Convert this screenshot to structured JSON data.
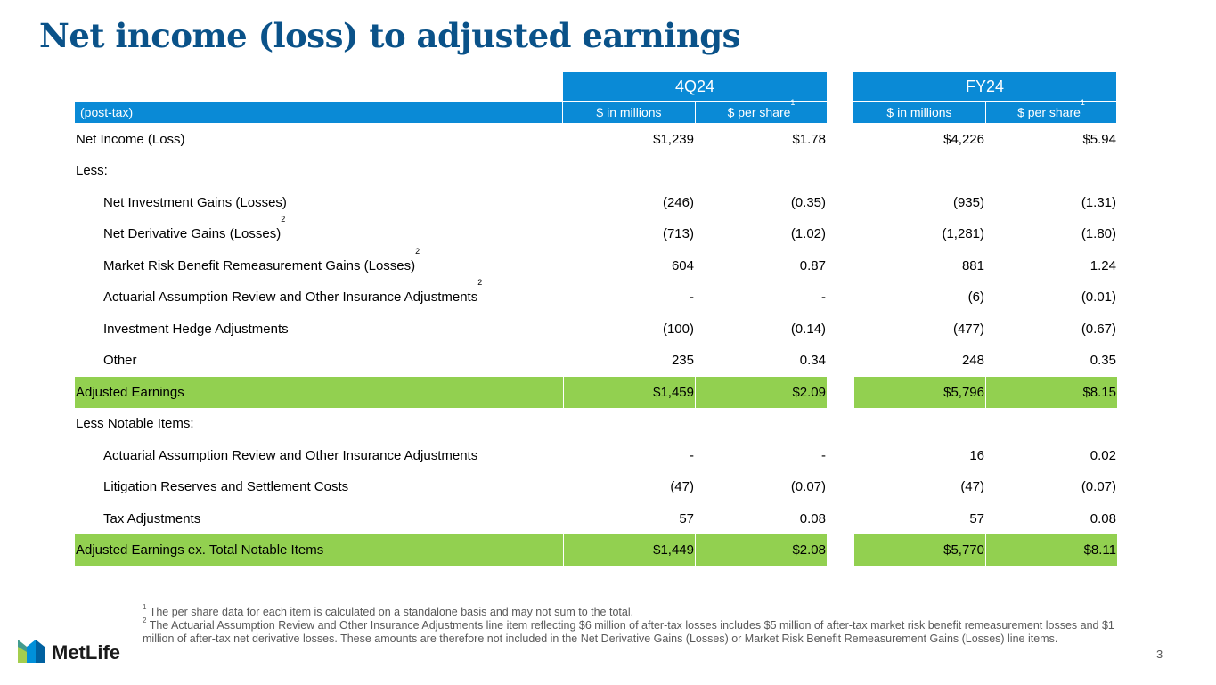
{
  "title": "Net income (loss) to adjusted earnings",
  "columns": {
    "group1": "4Q24",
    "group2": "FY24",
    "row_label_header": "(post-tax)",
    "millions": "$ in millions",
    "per_share": "$ per share",
    "per_share_footnote": "1"
  },
  "rows": [
    {
      "label": "Net Income (Loss)",
      "sup": "",
      "v1": "$1,239",
      "v2": "$1.78",
      "v3": "$4,226",
      "v4": "$5.94"
    },
    {
      "label": "Less:",
      "sup": "",
      "v1": "",
      "v2": "",
      "v3": "",
      "v4": ""
    },
    {
      "label": "Net Investment Gains (Losses)",
      "sup": "",
      "v1": "(246)",
      "v2": "(0.35)",
      "v3": "(935)",
      "v4": "(1.31)"
    },
    {
      "label": "Net Derivative Gains (Losses)",
      "sup": "2",
      "v1": "(713)",
      "v2": "(1.02)",
      "v3": "(1,281)",
      "v4": "(1.80)"
    },
    {
      "label": "Market Risk Benefit Remeasurement Gains (Losses)",
      "sup": "2",
      "v1": "604",
      "v2": "0.87",
      "v3": "881",
      "v4": "1.24"
    },
    {
      "label": "Actuarial Assumption Review and Other Insurance Adjustments",
      "sup": "2",
      "v1": "-",
      "v2": "-",
      "v3": "(6)",
      "v4": "(0.01)"
    },
    {
      "label": "Investment Hedge Adjustments",
      "sup": "",
      "v1": "(100)",
      "v2": "(0.14)",
      "v3": "(477)",
      "v4": "(0.67)"
    },
    {
      "label": "Other",
      "sup": "",
      "v1": "235",
      "v2": "0.34",
      "v3": "248",
      "v4": "0.35"
    },
    {
      "label": "Adjusted Earnings",
      "sup": "",
      "v1": "$1,459",
      "v2": "$2.09",
      "v3": "$5,796",
      "v4": "$8.15"
    },
    {
      "label": "Less Notable Items:",
      "sup": "",
      "v1": "",
      "v2": "",
      "v3": "",
      "v4": ""
    },
    {
      "label": "Actuarial Assumption Review and Other Insurance Adjustments",
      "sup": "",
      "v1": "-",
      "v2": "-",
      "v3": "16",
      "v4": "0.02"
    },
    {
      "label": "Litigation Reserves and Settlement Costs",
      "sup": "",
      "v1": "(47)",
      "v2": "(0.07)",
      "v3": "(47)",
      "v4": "(0.07)"
    },
    {
      "label": "Tax Adjustments",
      "sup": "",
      "v1": "57",
      "v2": "0.08",
      "v3": "57",
      "v4": "0.08"
    },
    {
      "label": "Adjusted Earnings ex. Total Notable Items",
      "sup": "",
      "v1": "$1,449",
      "v2": "$2.08",
      "v3": "$5,770",
      "v4": "$8.11"
    }
  ],
  "footnotes": [
    {
      "num": "1",
      "text": "The per share data for each item is calculated on a standalone basis and may not sum to the total."
    },
    {
      "num": "2",
      "text": "The Actuarial Assumption Review and Other Insurance Adjustments line item reflecting $6 million of after-tax losses includes $5 million of after-tax market risk benefit remeasurement losses and $1 million of after-tax net derivative losses. These amounts are therefore not included in the Net Derivative Gains (Losses) or Market Risk Benefit Remeasurement Gains (Losses) line items."
    }
  ],
  "logo_text": "MetLife",
  "page_number": "3",
  "colors": {
    "title": "#0a5289",
    "header": "#0a8ad6",
    "highlight": "#92d050"
  }
}
